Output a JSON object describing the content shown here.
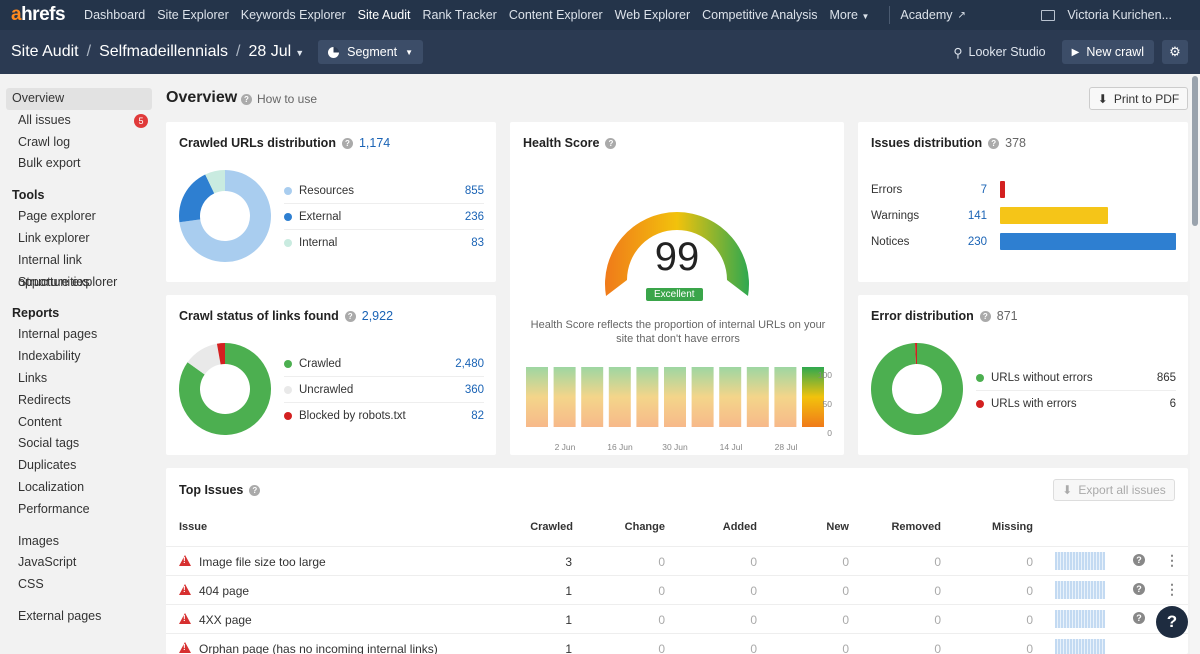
{
  "topnav": {
    "logo_a": "a",
    "logo_rest": "hrefs",
    "links": [
      "Dashboard",
      "Site Explorer",
      "Keywords Explorer",
      "Site Audit",
      "Rank Tracker",
      "Content Explorer",
      "Web Explorer",
      "Competitive Analysis",
      "More"
    ],
    "active": "Site Audit",
    "academy": "Academy",
    "user": "Victoria Kurichen..."
  },
  "subhead": {
    "crumb1": "Site Audit",
    "crumb2": "Selfmadeillennials",
    "crumb3": "28 Jul",
    "segment": "Segment",
    "looker": "Looker Studio",
    "new_crawl": "New crawl"
  },
  "sidebar": {
    "top": [
      {
        "label": "Overview",
        "active": true
      },
      {
        "label": "All issues",
        "badge": "5"
      },
      {
        "label": "Crawl log"
      },
      {
        "label": "Bulk export"
      }
    ],
    "tools_heading": "Tools",
    "tools": [
      "Page explorer",
      "Link explorer",
      "Internal link opportunities",
      "Structure explorer"
    ],
    "reports_heading": "Reports",
    "reports": [
      "Internal pages",
      "Indexability",
      "Links",
      "Redirects",
      "Content",
      "Social tags",
      "Duplicates",
      "Localization",
      "Performance"
    ],
    "resources": [
      "Images",
      "JavaScript",
      "CSS"
    ],
    "external": [
      "External pages"
    ]
  },
  "main": {
    "title": "Overview",
    "how_to": "How to use",
    "print": "Print to PDF"
  },
  "crawled_urls": {
    "title": "Crawled URLs distribution",
    "total": "1,174",
    "items": [
      {
        "label": "Resources",
        "value": "855",
        "color": "#a9cdef"
      },
      {
        "label": "External",
        "value": "236",
        "color": "#2e7fd1"
      },
      {
        "label": "Internal",
        "value": "83",
        "color": "#c9ebe0"
      }
    ],
    "numbers": [
      855,
      236,
      83
    ]
  },
  "crawl_status": {
    "title": "Crawl status of links found",
    "total": "2,922",
    "items": [
      {
        "label": "Crawled",
        "value": "2,480",
        "color": "#4caf50"
      },
      {
        "label": "Uncrawled",
        "value": "360",
        "color": "#e9e9e9"
      },
      {
        "label": "Blocked by robots.txt",
        "value": "82",
        "color": "#d32020"
      }
    ],
    "numbers": [
      2480,
      360,
      82
    ]
  },
  "health": {
    "title": "Health Score",
    "score": "99",
    "label": "Excellent",
    "note": "Health Score reflects the proportion of internal URLs on your site that don't have errors",
    "y_ticks": [
      "100",
      "50",
      "0"
    ],
    "x_ticks": [
      "2 Jun",
      "16 Jun",
      "30 Jun",
      "14 Jul",
      "28 Jul"
    ]
  },
  "issues_dist": {
    "title": "Issues distribution",
    "total": "378",
    "items": [
      {
        "label": "Errors",
        "value": "7",
        "color": "#d32020"
      },
      {
        "label": "Warnings",
        "value": "141",
        "color": "#f5c518"
      },
      {
        "label": "Notices",
        "value": "230",
        "color": "#2e7fd1"
      }
    ],
    "numbers": [
      7,
      141,
      230
    ]
  },
  "error_dist": {
    "title": "Error distribution",
    "total": "871",
    "items": [
      {
        "label": "URLs without errors",
        "value": "865",
        "color": "#4caf50"
      },
      {
        "label": "URLs with errors",
        "value": "6",
        "color": "#d32020"
      }
    ],
    "numbers": [
      865,
      6
    ]
  },
  "top_issues": {
    "title": "Top Issues",
    "export": "Export all issues",
    "columns": [
      "Issue",
      "Crawled",
      "Change",
      "Added",
      "New",
      "Removed",
      "Missing"
    ],
    "rows": [
      {
        "name": "Image file size too large",
        "crawled": "3",
        "change": "0",
        "added": "0",
        "new": "0",
        "removed": "0",
        "missing": "0"
      },
      {
        "name": "404 page",
        "crawled": "1",
        "change": "0",
        "added": "0",
        "new": "0",
        "removed": "0",
        "missing": "0"
      },
      {
        "name": "4XX page",
        "crawled": "1",
        "change": "0",
        "added": "0",
        "new": "0",
        "removed": "0",
        "missing": "0"
      },
      {
        "name": "Orphan page (has no incoming internal links)",
        "crawled": "1",
        "change": "0",
        "added": "0",
        "new": "0",
        "removed": "0",
        "missing": "0"
      }
    ]
  }
}
